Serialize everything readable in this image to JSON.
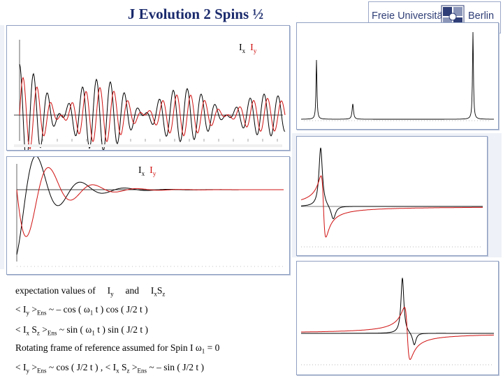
{
  "slide": {
    "title": "J Evolution 2 Spins ½",
    "logo": {
      "name": "Freie Universität",
      "city": "Berlin",
      "crest": "university-crest-icon"
    }
  },
  "plot_top_left": {
    "legend_x": "I",
    "legend_x_sub": "x",
    "legend_y": "I",
    "legend_y_sub": "y"
  },
  "plot_mid_left": {
    "legend_x": "I",
    "legend_x_sub": "x",
    "legend_y": "I",
    "legend_y_sub": "y"
  },
  "colors": {
    "ix": "#000000",
    "iy": "#d01010",
    "panel_border": "#8fa0c2",
    "title": "#1a2a6c"
  },
  "text": {
    "line1_a": "expectation values of",
    "line1_b": "I",
    "line1_b_sub": "y",
    "line1_c": "and",
    "line1_d": "I",
    "line1_d_sub": "x",
    "line1_e": "S",
    "line1_e_sub": "z",
    "line2_a": "< I",
    "line2_a_sub": "y",
    "line2_b": " >",
    "line2_b_sub": "Ens",
    "line2_c": "  ~  –  cos  ( ω",
    "line2_c_sub": "1",
    "line2_d": "  t )  cos  (  J/2  t )",
    "line3_a": "<  I",
    "line3_a_sub": "x",
    "line3_b": " S",
    "line3_b_sub": "z",
    "line3_c": " >",
    "line3_c_sub": "Ens",
    "line3_d": "  ~   sin  ( ω",
    "line3_d_sub": "1",
    "line3_e": "  t )  sin  (  J/2  t )",
    "line4_a": "Rotating frame of reference assumed for  Spin I  ω",
    "line4_a_sub": "1",
    "line4_b": "  =  0",
    "line5_a": "< I",
    "line5_a_sub": "y",
    "line5_b": " >",
    "line5_b_sub": "Ens",
    "line5_c": "  ~ cos  (  J/2  t )     ,  <  I",
    "line5_c_sub": "x",
    "line5_d": " S",
    "line5_d_sub": "z",
    "line5_e": " >",
    "line5_e_sub": "Ens",
    "line5_f": "  ~  –  sin  (  J/2  t )"
  }
}
